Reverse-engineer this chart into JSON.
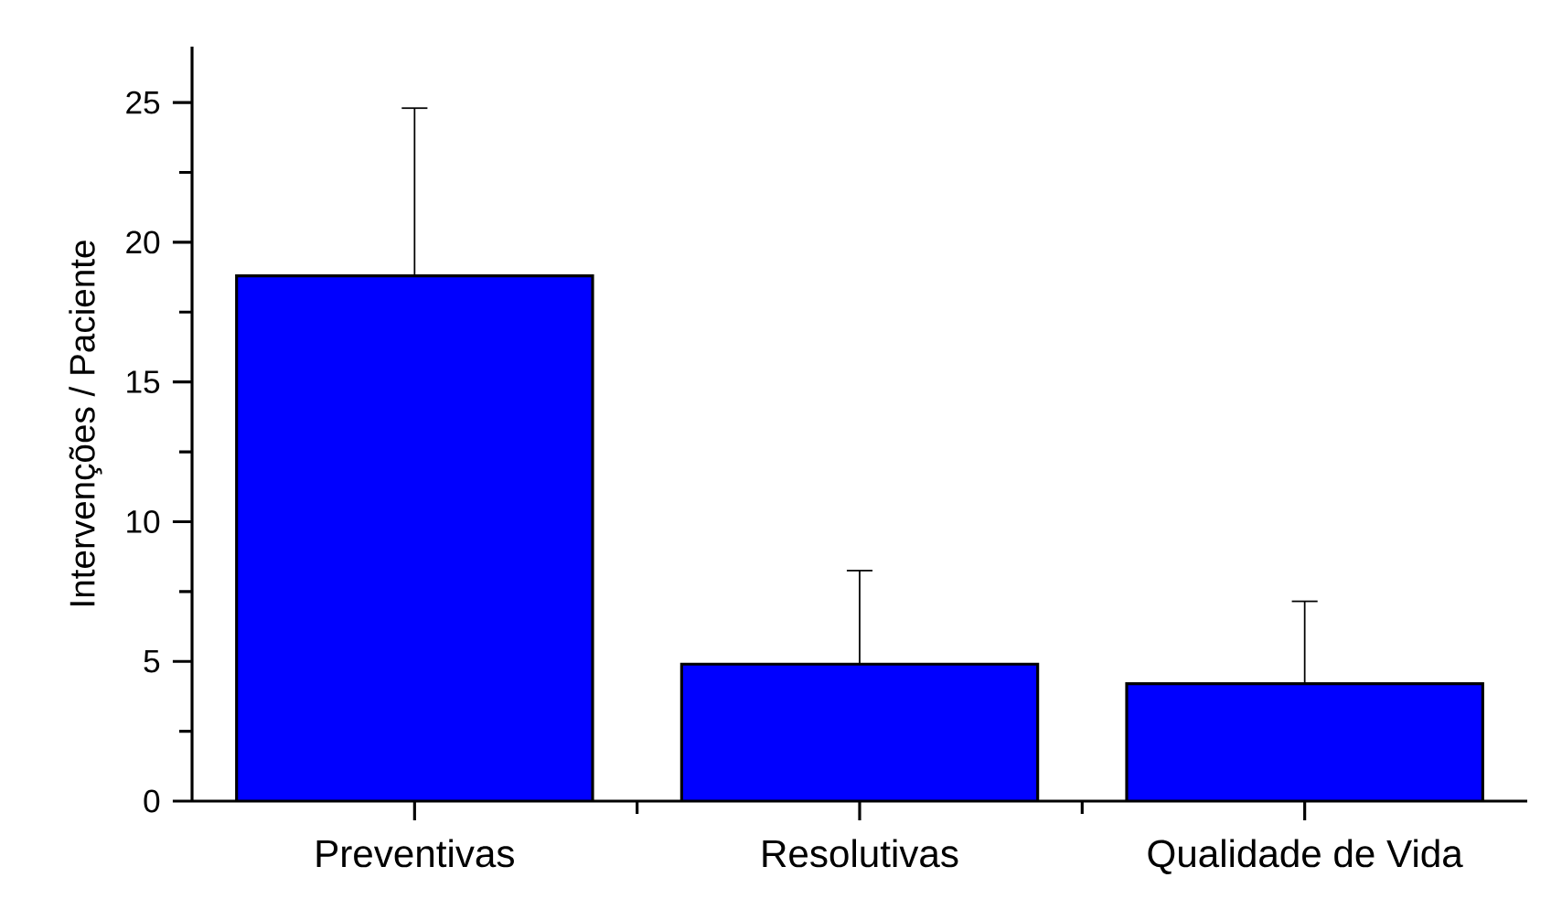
{
  "chart_data": {
    "type": "bar",
    "ylabel": "Intervenções / Paciente",
    "categories": [
      "Preventivas",
      "Resolutivas",
      "Qualidade de Vida"
    ],
    "values": [
      18.8,
      4.9,
      4.2
    ],
    "errors": [
      6.0,
      3.35,
      2.95
    ],
    "color": "#0000ff",
    "ylim": [
      0,
      27
    ],
    "yticks": [
      0,
      {
        "value": 2.5,
        "label": null
      },
      5,
      {
        "value": 7.5,
        "label": null
      },
      10,
      {
        "value": 12.5,
        "label": null
      },
      15,
      {
        "value": 17.5,
        "label": null
      },
      20,
      {
        "value": 22.5,
        "label": null
      },
      25
    ],
    "grid": false
  }
}
